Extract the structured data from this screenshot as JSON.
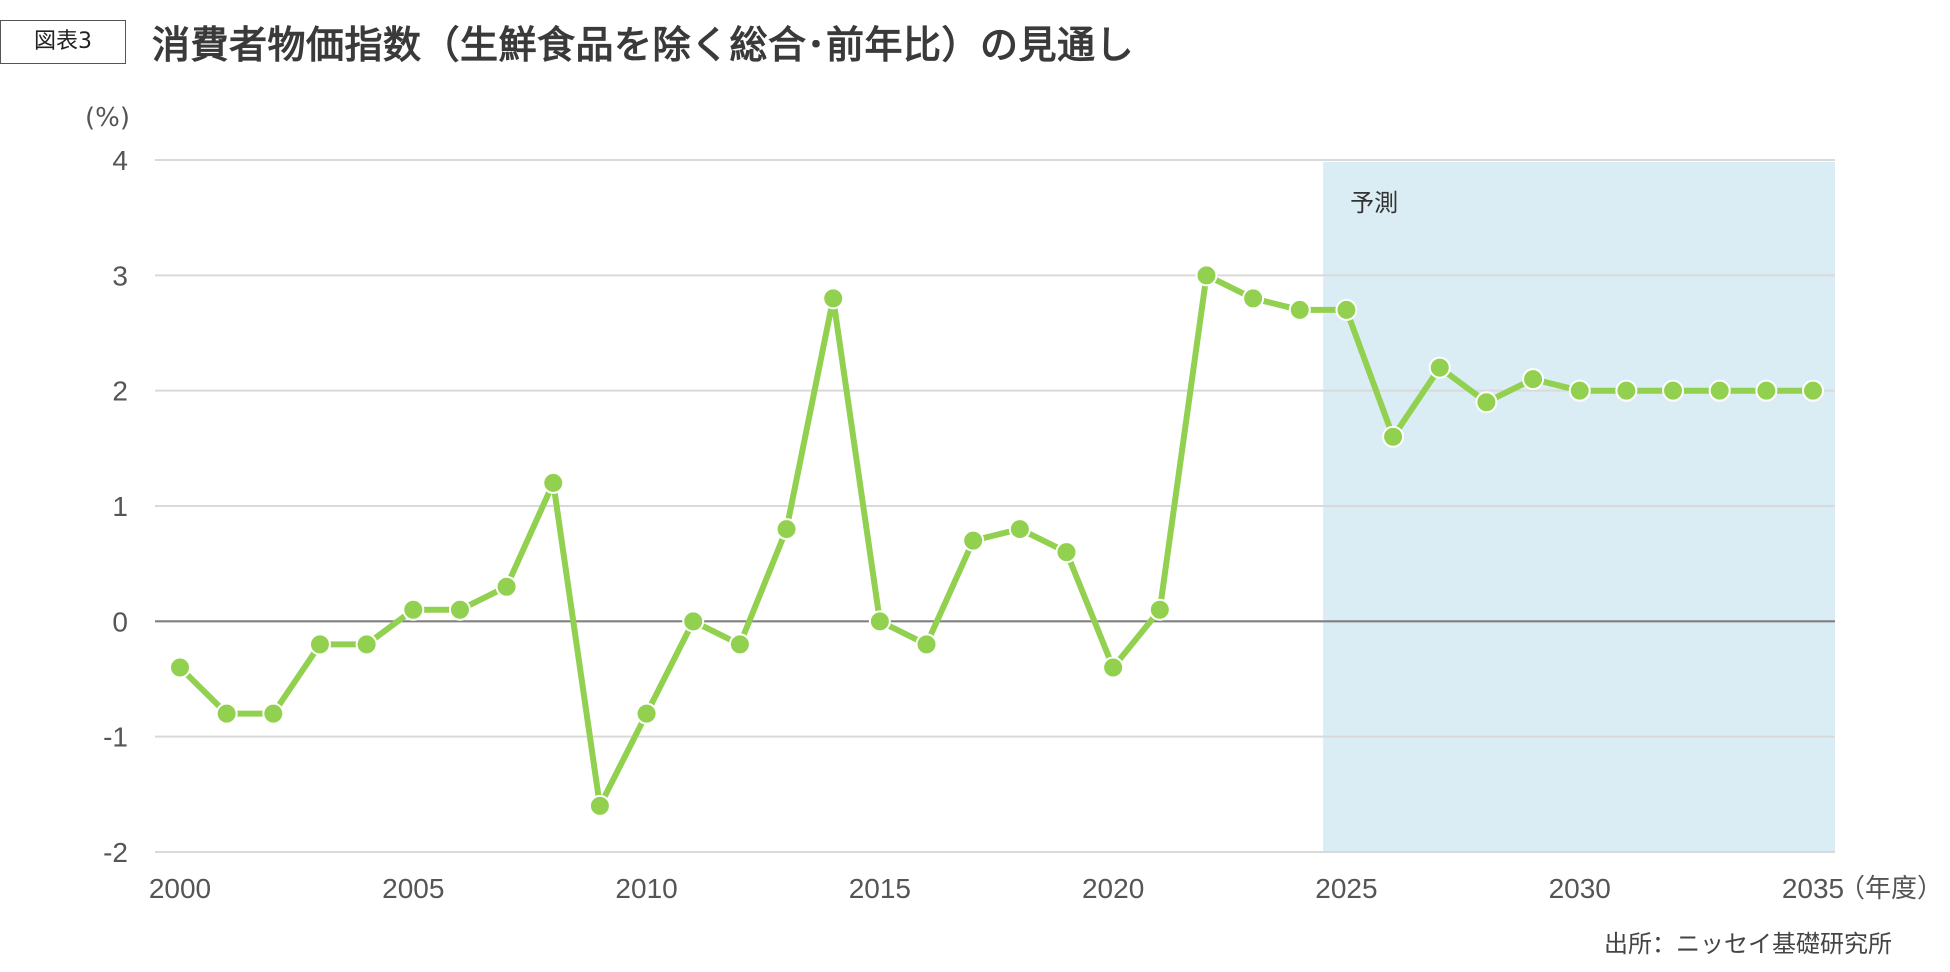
{
  "header": {
    "figure_tag": "図表3",
    "title": "消費者物価指数（生鮮食品を除く総合･前年比）の見通し"
  },
  "source": "出所：ニッセイ基礎研究所",
  "colors": {
    "line": "#92d050",
    "forecast_fill": "#daedf4",
    "grid": "#d9d9d9",
    "zero_line": "#808080"
  },
  "chart_data": {
    "type": "line",
    "ylabel": "(%)",
    "xlabel": "（年度）",
    "ylim": [
      -2,
      4
    ],
    "yticks": [
      4,
      3,
      2,
      1,
      0,
      -1,
      -2
    ],
    "xlim": [
      2000,
      2035
    ],
    "xticks": [
      2000,
      2005,
      2010,
      2015,
      2020,
      2025,
      2030,
      2035
    ],
    "grid": true,
    "forecast": {
      "label": "予測",
      "start": 2024.5,
      "end": 2035.5
    },
    "series": [
      {
        "x": [
          2000,
          2001,
          2002,
          2003,
          2004,
          2005,
          2006,
          2007,
          2008,
          2009,
          2010,
          2011,
          2012,
          2013,
          2014,
          2015,
          2016,
          2017,
          2018,
          2019,
          2020,
          2021,
          2022,
          2023,
          2024,
          2025,
          2026,
          2027,
          2028,
          2029,
          2030,
          2031,
          2032,
          2033,
          2034,
          2035
        ],
        "values": [
          -0.4,
          -0.8,
          -0.8,
          -0.2,
          -0.2,
          0.1,
          0.1,
          0.3,
          1.2,
          -1.6,
          -0.8,
          0.0,
          -0.2,
          0.8,
          2.8,
          0.0,
          -0.2,
          0.7,
          0.8,
          0.6,
          -0.4,
          0.1,
          3.0,
          2.8,
          2.7,
          2.7,
          1.6,
          2.2,
          1.9,
          2.1,
          2.0,
          2.0,
          2.0,
          2.0,
          2.0,
          2.0
        ]
      }
    ]
  }
}
